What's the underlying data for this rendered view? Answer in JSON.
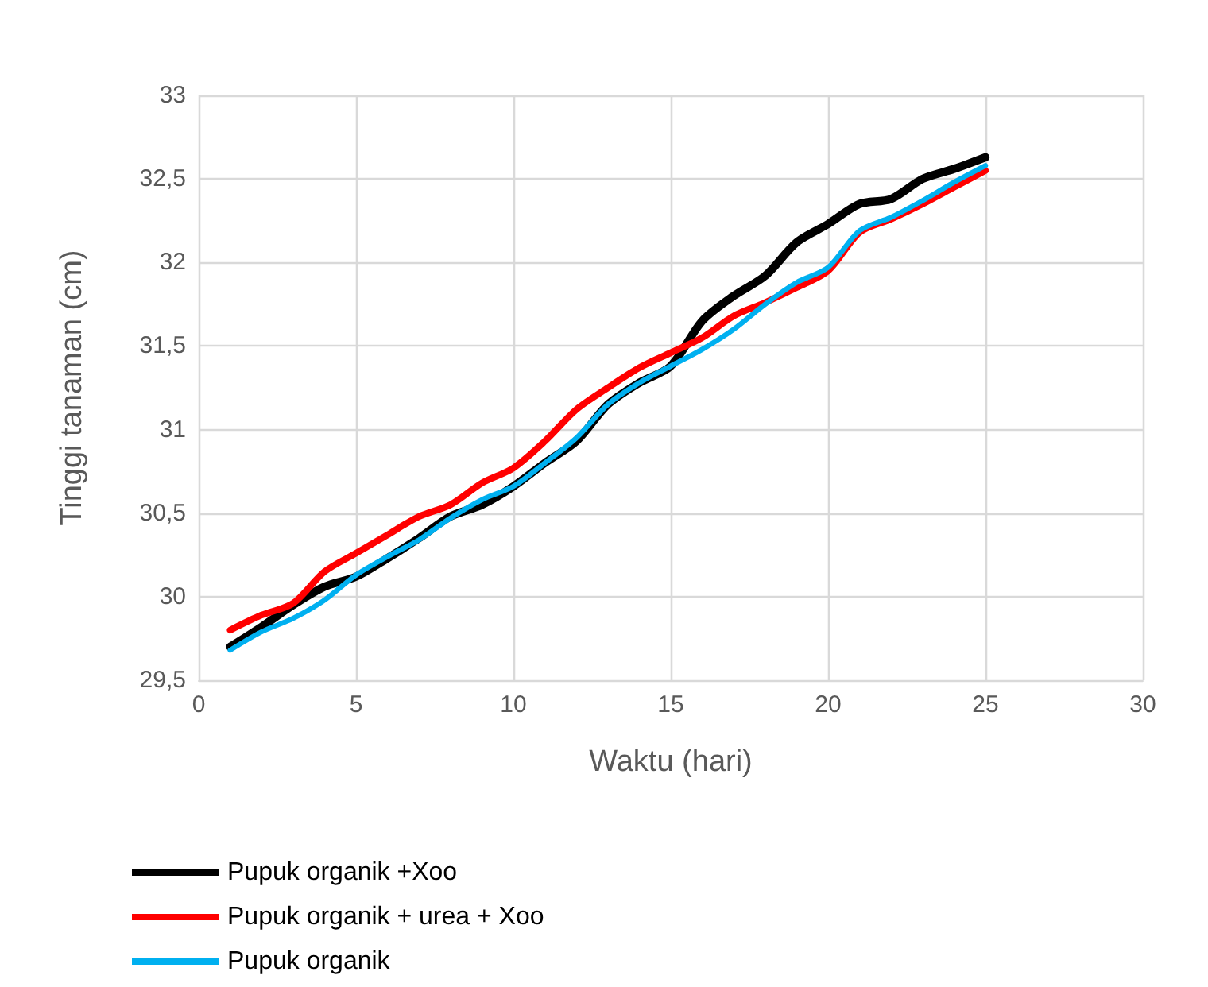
{
  "chart_data": {
    "type": "line",
    "xlabel": "Waktu (hari)",
    "ylabel": "Tinggi tanaman (cm)",
    "x": [
      1,
      2,
      3,
      4,
      5,
      6,
      7,
      8,
      9,
      10,
      11,
      12,
      13,
      14,
      15,
      16,
      17,
      18,
      19,
      20,
      21,
      22,
      23,
      24,
      25
    ],
    "series": [
      {
        "name": "Pupuk organik +Xoo",
        "color": "#000000",
        "values": [
          29.7,
          29.82,
          29.95,
          30.06,
          30.12,
          30.23,
          30.35,
          30.48,
          30.55,
          30.66,
          30.8,
          30.93,
          31.15,
          31.28,
          31.38,
          31.65,
          31.8,
          31.92,
          32.12,
          32.23,
          32.35,
          32.38,
          32.5,
          32.56,
          32.63
        ]
      },
      {
        "name": "Pupuk organik + urea + Xoo",
        "color": "#ff0000",
        "values": [
          29.8,
          29.89,
          29.96,
          30.15,
          30.26,
          30.37,
          30.48,
          30.55,
          30.68,
          30.77,
          30.93,
          31.12,
          31.25,
          31.37,
          31.46,
          31.55,
          31.68,
          31.76,
          31.85,
          31.95,
          32.18,
          32.26,
          32.35,
          32.45,
          32.55
        ]
      },
      {
        "name": "Pupuk organik",
        "color": "#00b0f0",
        "values": [
          29.68,
          29.79,
          29.87,
          29.98,
          30.13,
          30.24,
          30.34,
          30.47,
          30.58,
          30.66,
          30.8,
          30.95,
          31.15,
          31.28,
          31.38,
          31.48,
          31.6,
          31.75,
          31.88,
          31.97,
          32.19,
          32.27,
          32.37,
          32.48,
          32.58
        ]
      }
    ],
    "xlim": [
      0,
      30
    ],
    "xticks": [
      0,
      5,
      10,
      15,
      20,
      25,
      30
    ],
    "ylim": [
      29.5,
      33
    ],
    "yticks": [
      {
        "value": 29.5,
        "label": "29,5"
      },
      30,
      {
        "value": 30.5,
        "label": "30,5"
      },
      31,
      {
        "value": 31.5,
        "label": "31,5"
      },
      32,
      {
        "value": 32.5,
        "label": "32,5"
      },
      33
    ],
    "grid": true,
    "legend": "bottom left",
    "marker": "none",
    "line_style": "solid"
  }
}
